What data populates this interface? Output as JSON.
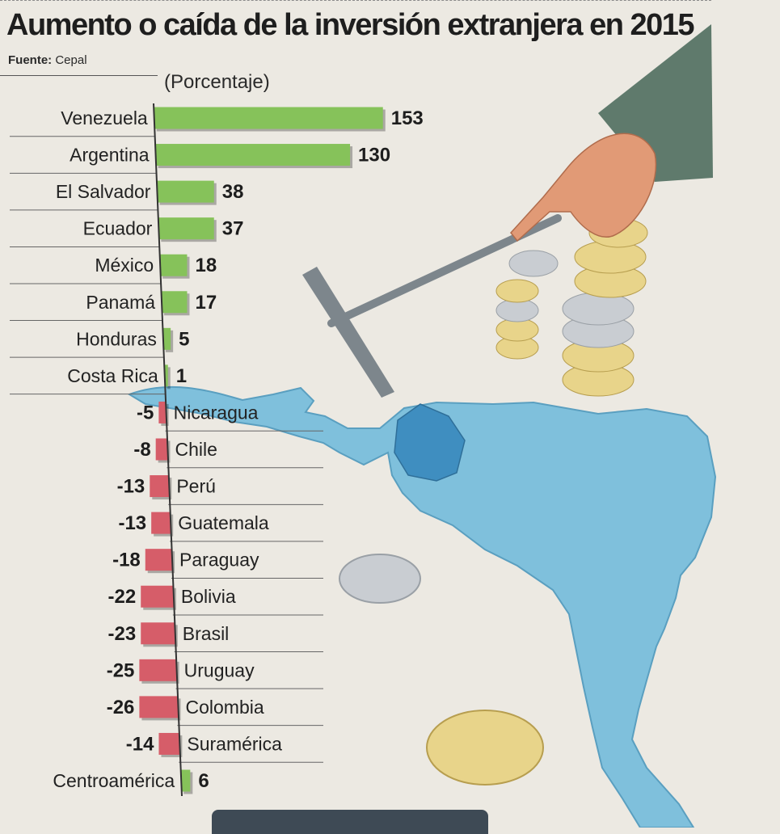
{
  "title": "Aumento o caída de la inversión extranjera en 2015",
  "source_label": "Fuente:",
  "source": "Cepal",
  "chart_data": {
    "type": "bar",
    "orientation": "horizontal",
    "title": "Aumento o caída de la inversión extranjera en 2015",
    "unit_label": "(Porcentaje)",
    "categories": [
      "Venezuela",
      "Argentina",
      "El Salvador",
      "Ecuador",
      "México",
      "Panamá",
      "Honduras",
      "Costa Rica",
      "Nicaragua",
      "Chile",
      "Perú",
      "Guatemala",
      "Paraguay",
      "Bolivia",
      "Brasil",
      "Uruguay",
      "Colombia",
      "Suramérica",
      "Centroamérica"
    ],
    "values": [
      153,
      130,
      38,
      37,
      18,
      17,
      5,
      1,
      -5,
      -8,
      -13,
      -13,
      -18,
      -22,
      -23,
      -25,
      -26,
      -14,
      6
    ],
    "colors": {
      "positive": "#86c25a",
      "negative": "#d65d69"
    },
    "grid": false
  },
  "illustration": {
    "map_color": "#7fc0dc",
    "map_highlight": "#3f8ec0",
    "coin_gold": "#e8d48a",
    "coin_silver": "#c9cdd2"
  }
}
